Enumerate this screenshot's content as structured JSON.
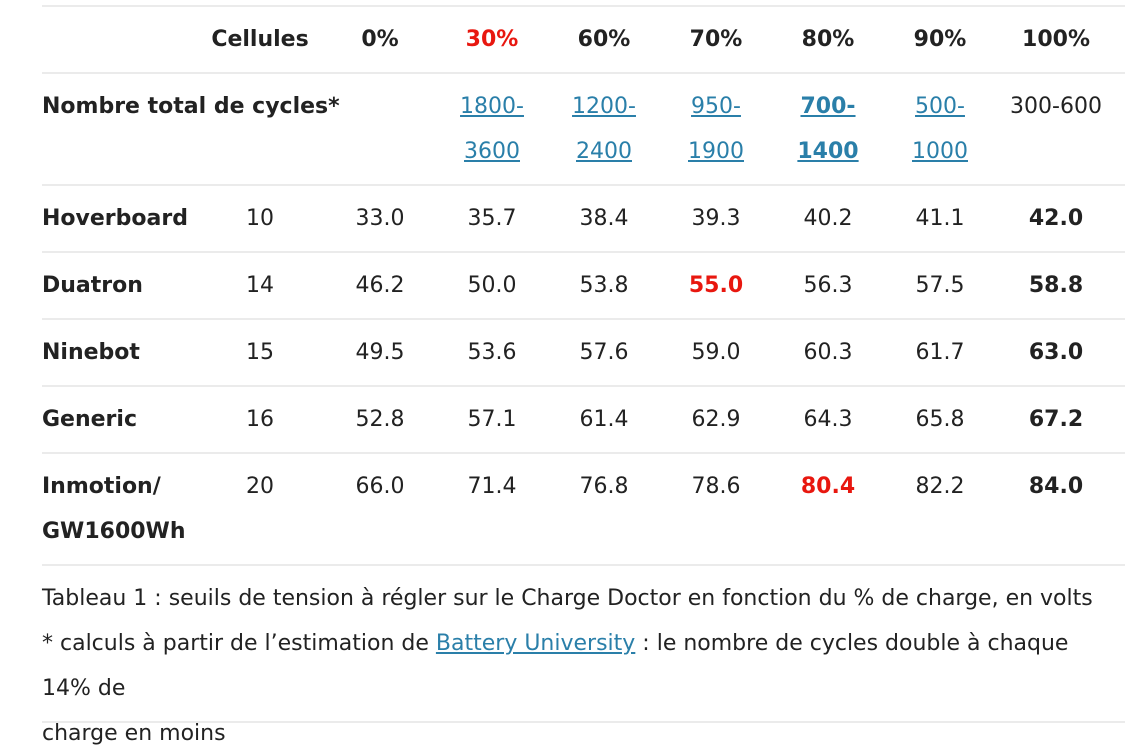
{
  "table": {
    "header": {
      "cells": "Cellules",
      "pct": [
        "0%",
        "30%",
        "60%",
        "70%",
        "80%",
        "90%",
        "100%"
      ]
    },
    "cycles_row": {
      "label": "Nombre total de cycles*",
      "values": [
        {
          "line1": "1800-",
          "line2": "3600"
        },
        {
          "line1": "1200-",
          "line2": "2400"
        },
        {
          "line1": "950-",
          "line2": "1900"
        },
        {
          "line1": "700-",
          "line2": "1400"
        },
        {
          "line1": "500-",
          "line2": "1000"
        }
      ],
      "last": "300-600"
    },
    "rows": [
      {
        "name": "Hoverboard",
        "cells": "10",
        "values": [
          "33.0",
          "35.7",
          "38.4",
          "39.3",
          "40.2",
          "41.1",
          "42.0"
        ]
      },
      {
        "name": "Duatron",
        "cells": "14",
        "values": [
          "46.2",
          "50.0",
          "53.8",
          "55.0",
          "56.3",
          "57.5",
          "58.8"
        ]
      },
      {
        "name": "Ninebot",
        "cells": "15",
        "values": [
          "49.5",
          "53.6",
          "57.6",
          "59.0",
          "60.3",
          "61.7",
          "63.0"
        ]
      },
      {
        "name": "Generic",
        "cells": "16",
        "values": [
          "52.8",
          "57.1",
          "61.4",
          "62.9",
          "64.3",
          "65.8",
          "67.2"
        ]
      },
      {
        "name_line1": "Inmotion/",
        "name_line2": "GW1600Wh",
        "cells": "20",
        "values": [
          "66.0",
          "71.4",
          "76.8",
          "78.6",
          "80.4",
          "82.2",
          "84.0"
        ]
      }
    ]
  },
  "caption": {
    "line1": "Tableau 1 : seuils de tension à régler sur le Charge Doctor en fonction du % de charge, en volts",
    "line2_prefix": "* calculs à partir de l’estimation de ",
    "link": "Battery University",
    "line2_suffix": " : le nombre de cycles double à chaque 14% de",
    "line3": "charge en moins"
  },
  "colors": {
    "highlight": "#e8170f",
    "link": "#2a7fa9",
    "rule": "#ebebeb"
  }
}
